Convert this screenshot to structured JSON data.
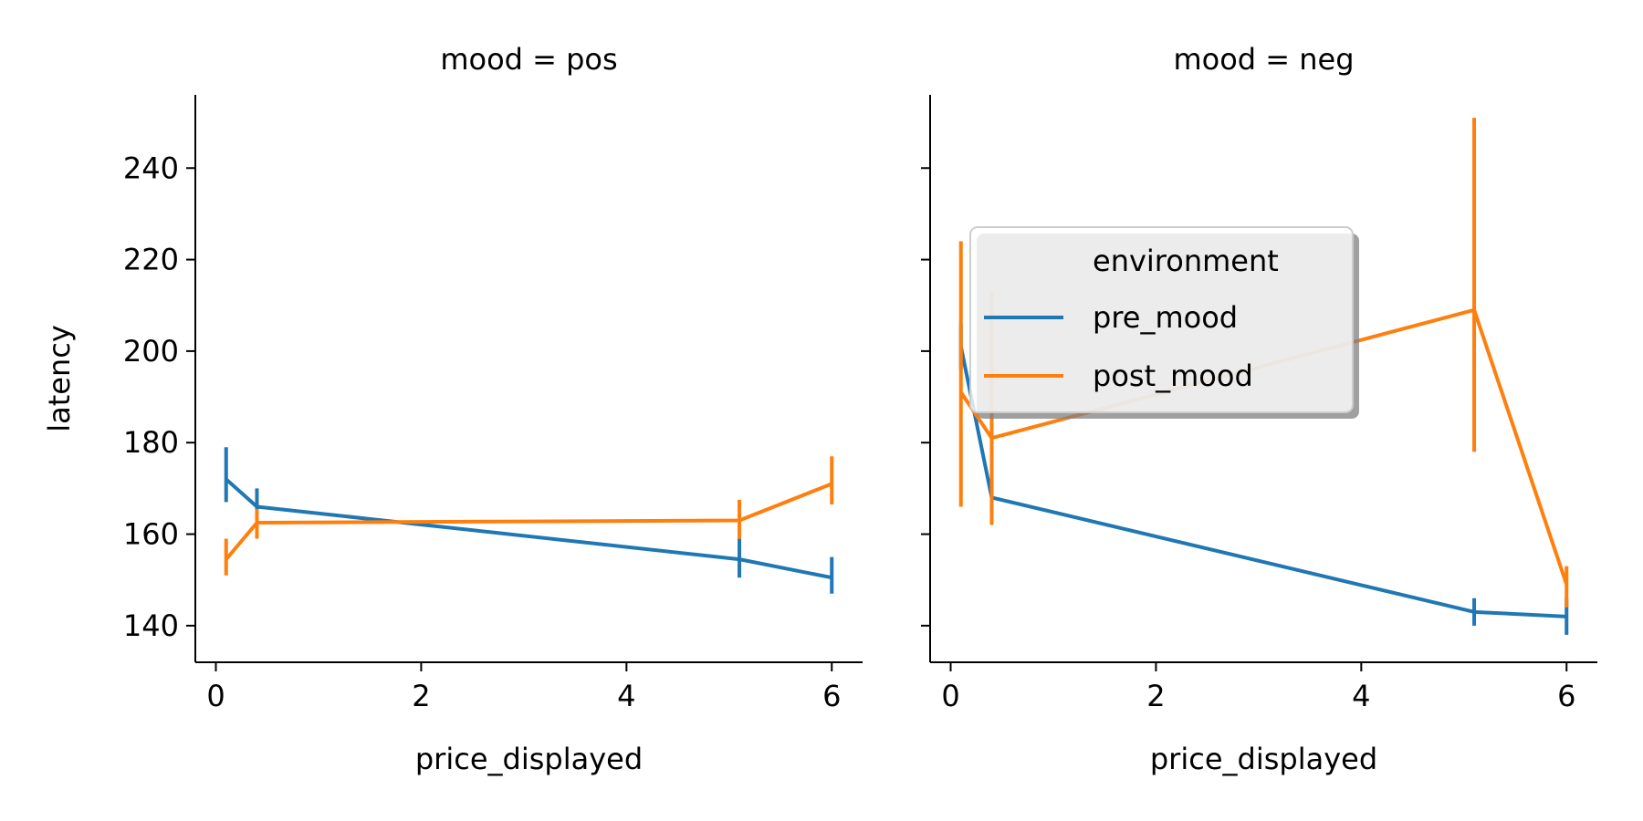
{
  "chart_data": {
    "type": "line",
    "legend": {
      "title": "environment",
      "placement": "upper-left of right panel",
      "entries": [
        {
          "label": "pre_mood",
          "color": "#1f77b4"
        },
        {
          "label": "post_mood",
          "color": "#ff7f0e"
        }
      ]
    },
    "shared_y": true,
    "ylabel": "latency",
    "ylim": [
      132,
      256
    ],
    "yticks": [
      140,
      160,
      180,
      200,
      220,
      240
    ],
    "xlabel": "price_displayed",
    "xlim": [
      -0.2,
      6.3
    ],
    "xticks": [
      0,
      2,
      4,
      6
    ],
    "panels": [
      {
        "title": "mood = pos",
        "series": [
          {
            "name": "pre_mood",
            "color": "#1f77b4",
            "points": [
              {
                "x": 0.1,
                "y": 172,
                "lo": 167,
                "hi": 179
              },
              {
                "x": 0.4,
                "y": 166,
                "lo": 163,
                "hi": 170
              },
              {
                "x": 5.1,
                "y": 154.5,
                "lo": 150.5,
                "hi": 159
              },
              {
                "x": 6.0,
                "y": 150.5,
                "lo": 147,
                "hi": 155
              }
            ]
          },
          {
            "name": "post_mood",
            "color": "#ff7f0e",
            "points": [
              {
                "x": 0.1,
                "y": 154.5,
                "lo": 151,
                "hi": 159
              },
              {
                "x": 0.4,
                "y": 162.5,
                "lo": 159,
                "hi": 165.5
              },
              {
                "x": 5.1,
                "y": 163,
                "lo": 159,
                "hi": 167.5
              },
              {
                "x": 6.0,
                "y": 171,
                "lo": 166.5,
                "hi": 177
              }
            ]
          }
        ]
      },
      {
        "title": "mood = neg",
        "series": [
          {
            "name": "pre_mood",
            "color": "#1f77b4",
            "points": [
              {
                "x": 0.1,
                "y": 201,
                "lo": 196,
                "hi": 206
              },
              {
                "x": 0.4,
                "y": 168,
                "lo": 165,
                "hi": 171
              },
              {
                "x": 5.1,
                "y": 143,
                "lo": 140,
                "hi": 146
              },
              {
                "x": 6.0,
                "y": 142,
                "lo": 138,
                "hi": 146
              }
            ]
          },
          {
            "name": "post_mood",
            "color": "#ff7f0e",
            "points": [
              {
                "x": 0.1,
                "y": 191,
                "lo": 166,
                "hi": 224
              },
              {
                "x": 0.4,
                "y": 181,
                "lo": 162,
                "hi": 213
              },
              {
                "x": 5.1,
                "y": 209,
                "lo": 178,
                "hi": 251
              },
              {
                "x": 6.0,
                "y": 149,
                "lo": 144,
                "hi": 153
              }
            ]
          }
        ]
      }
    ]
  }
}
